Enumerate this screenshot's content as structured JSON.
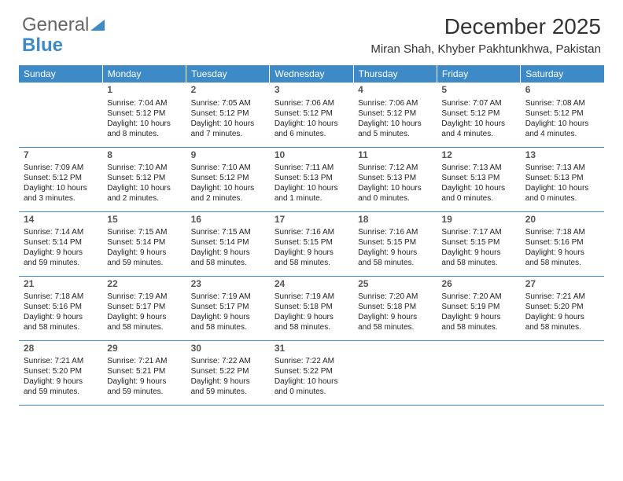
{
  "logo": {
    "text1": "General",
    "text2": "Blue",
    "color1": "#666666",
    "color2": "#3d8ac7"
  },
  "title": "December 2025",
  "location": "Miran Shah, Khyber Pakhtunkhwa, Pakistan",
  "header_bg": "#3d8ac7",
  "header_fg": "#ffffff",
  "border_color": "#3d8ac7",
  "background_color": "#ffffff",
  "day_headers": [
    "Sunday",
    "Monday",
    "Tuesday",
    "Wednesday",
    "Thursday",
    "Friday",
    "Saturday"
  ],
  "weeks": [
    [
      null,
      {
        "d": "1",
        "sr": "7:04 AM",
        "ss": "5:12 PM",
        "dl": "10 hours and 8 minutes."
      },
      {
        "d": "2",
        "sr": "7:05 AM",
        "ss": "5:12 PM",
        "dl": "10 hours and 7 minutes."
      },
      {
        "d": "3",
        "sr": "7:06 AM",
        "ss": "5:12 PM",
        "dl": "10 hours and 6 minutes."
      },
      {
        "d": "4",
        "sr": "7:06 AM",
        "ss": "5:12 PM",
        "dl": "10 hours and 5 minutes."
      },
      {
        "d": "5",
        "sr": "7:07 AM",
        "ss": "5:12 PM",
        "dl": "10 hours and 4 minutes."
      },
      {
        "d": "6",
        "sr": "7:08 AM",
        "ss": "5:12 PM",
        "dl": "10 hours and 4 minutes."
      }
    ],
    [
      {
        "d": "7",
        "sr": "7:09 AM",
        "ss": "5:12 PM",
        "dl": "10 hours and 3 minutes."
      },
      {
        "d": "8",
        "sr": "7:10 AM",
        "ss": "5:12 PM",
        "dl": "10 hours and 2 minutes."
      },
      {
        "d": "9",
        "sr": "7:10 AM",
        "ss": "5:12 PM",
        "dl": "10 hours and 2 minutes."
      },
      {
        "d": "10",
        "sr": "7:11 AM",
        "ss": "5:13 PM",
        "dl": "10 hours and 1 minute."
      },
      {
        "d": "11",
        "sr": "7:12 AM",
        "ss": "5:13 PM",
        "dl": "10 hours and 0 minutes."
      },
      {
        "d": "12",
        "sr": "7:13 AM",
        "ss": "5:13 PM",
        "dl": "10 hours and 0 minutes."
      },
      {
        "d": "13",
        "sr": "7:13 AM",
        "ss": "5:13 PM",
        "dl": "10 hours and 0 minutes."
      }
    ],
    [
      {
        "d": "14",
        "sr": "7:14 AM",
        "ss": "5:14 PM",
        "dl": "9 hours and 59 minutes."
      },
      {
        "d": "15",
        "sr": "7:15 AM",
        "ss": "5:14 PM",
        "dl": "9 hours and 59 minutes."
      },
      {
        "d": "16",
        "sr": "7:15 AM",
        "ss": "5:14 PM",
        "dl": "9 hours and 58 minutes."
      },
      {
        "d": "17",
        "sr": "7:16 AM",
        "ss": "5:15 PM",
        "dl": "9 hours and 58 minutes."
      },
      {
        "d": "18",
        "sr": "7:16 AM",
        "ss": "5:15 PM",
        "dl": "9 hours and 58 minutes."
      },
      {
        "d": "19",
        "sr": "7:17 AM",
        "ss": "5:15 PM",
        "dl": "9 hours and 58 minutes."
      },
      {
        "d": "20",
        "sr": "7:18 AM",
        "ss": "5:16 PM",
        "dl": "9 hours and 58 minutes."
      }
    ],
    [
      {
        "d": "21",
        "sr": "7:18 AM",
        "ss": "5:16 PM",
        "dl": "9 hours and 58 minutes."
      },
      {
        "d": "22",
        "sr": "7:19 AM",
        "ss": "5:17 PM",
        "dl": "9 hours and 58 minutes."
      },
      {
        "d": "23",
        "sr": "7:19 AM",
        "ss": "5:17 PM",
        "dl": "9 hours and 58 minutes."
      },
      {
        "d": "24",
        "sr": "7:19 AM",
        "ss": "5:18 PM",
        "dl": "9 hours and 58 minutes."
      },
      {
        "d": "25",
        "sr": "7:20 AM",
        "ss": "5:18 PM",
        "dl": "9 hours and 58 minutes."
      },
      {
        "d": "26",
        "sr": "7:20 AM",
        "ss": "5:19 PM",
        "dl": "9 hours and 58 minutes."
      },
      {
        "d": "27",
        "sr": "7:21 AM",
        "ss": "5:20 PM",
        "dl": "9 hours and 58 minutes."
      }
    ],
    [
      {
        "d": "28",
        "sr": "7:21 AM",
        "ss": "5:20 PM",
        "dl": "9 hours and 59 minutes."
      },
      {
        "d": "29",
        "sr": "7:21 AM",
        "ss": "5:21 PM",
        "dl": "9 hours and 59 minutes."
      },
      {
        "d": "30",
        "sr": "7:22 AM",
        "ss": "5:22 PM",
        "dl": "9 hours and 59 minutes."
      },
      {
        "d": "31",
        "sr": "7:22 AM",
        "ss": "5:22 PM",
        "dl": "10 hours and 0 minutes."
      },
      null,
      null,
      null
    ]
  ],
  "labels": {
    "sunrise": "Sunrise:",
    "sunset": "Sunset:",
    "daylight": "Daylight:"
  }
}
